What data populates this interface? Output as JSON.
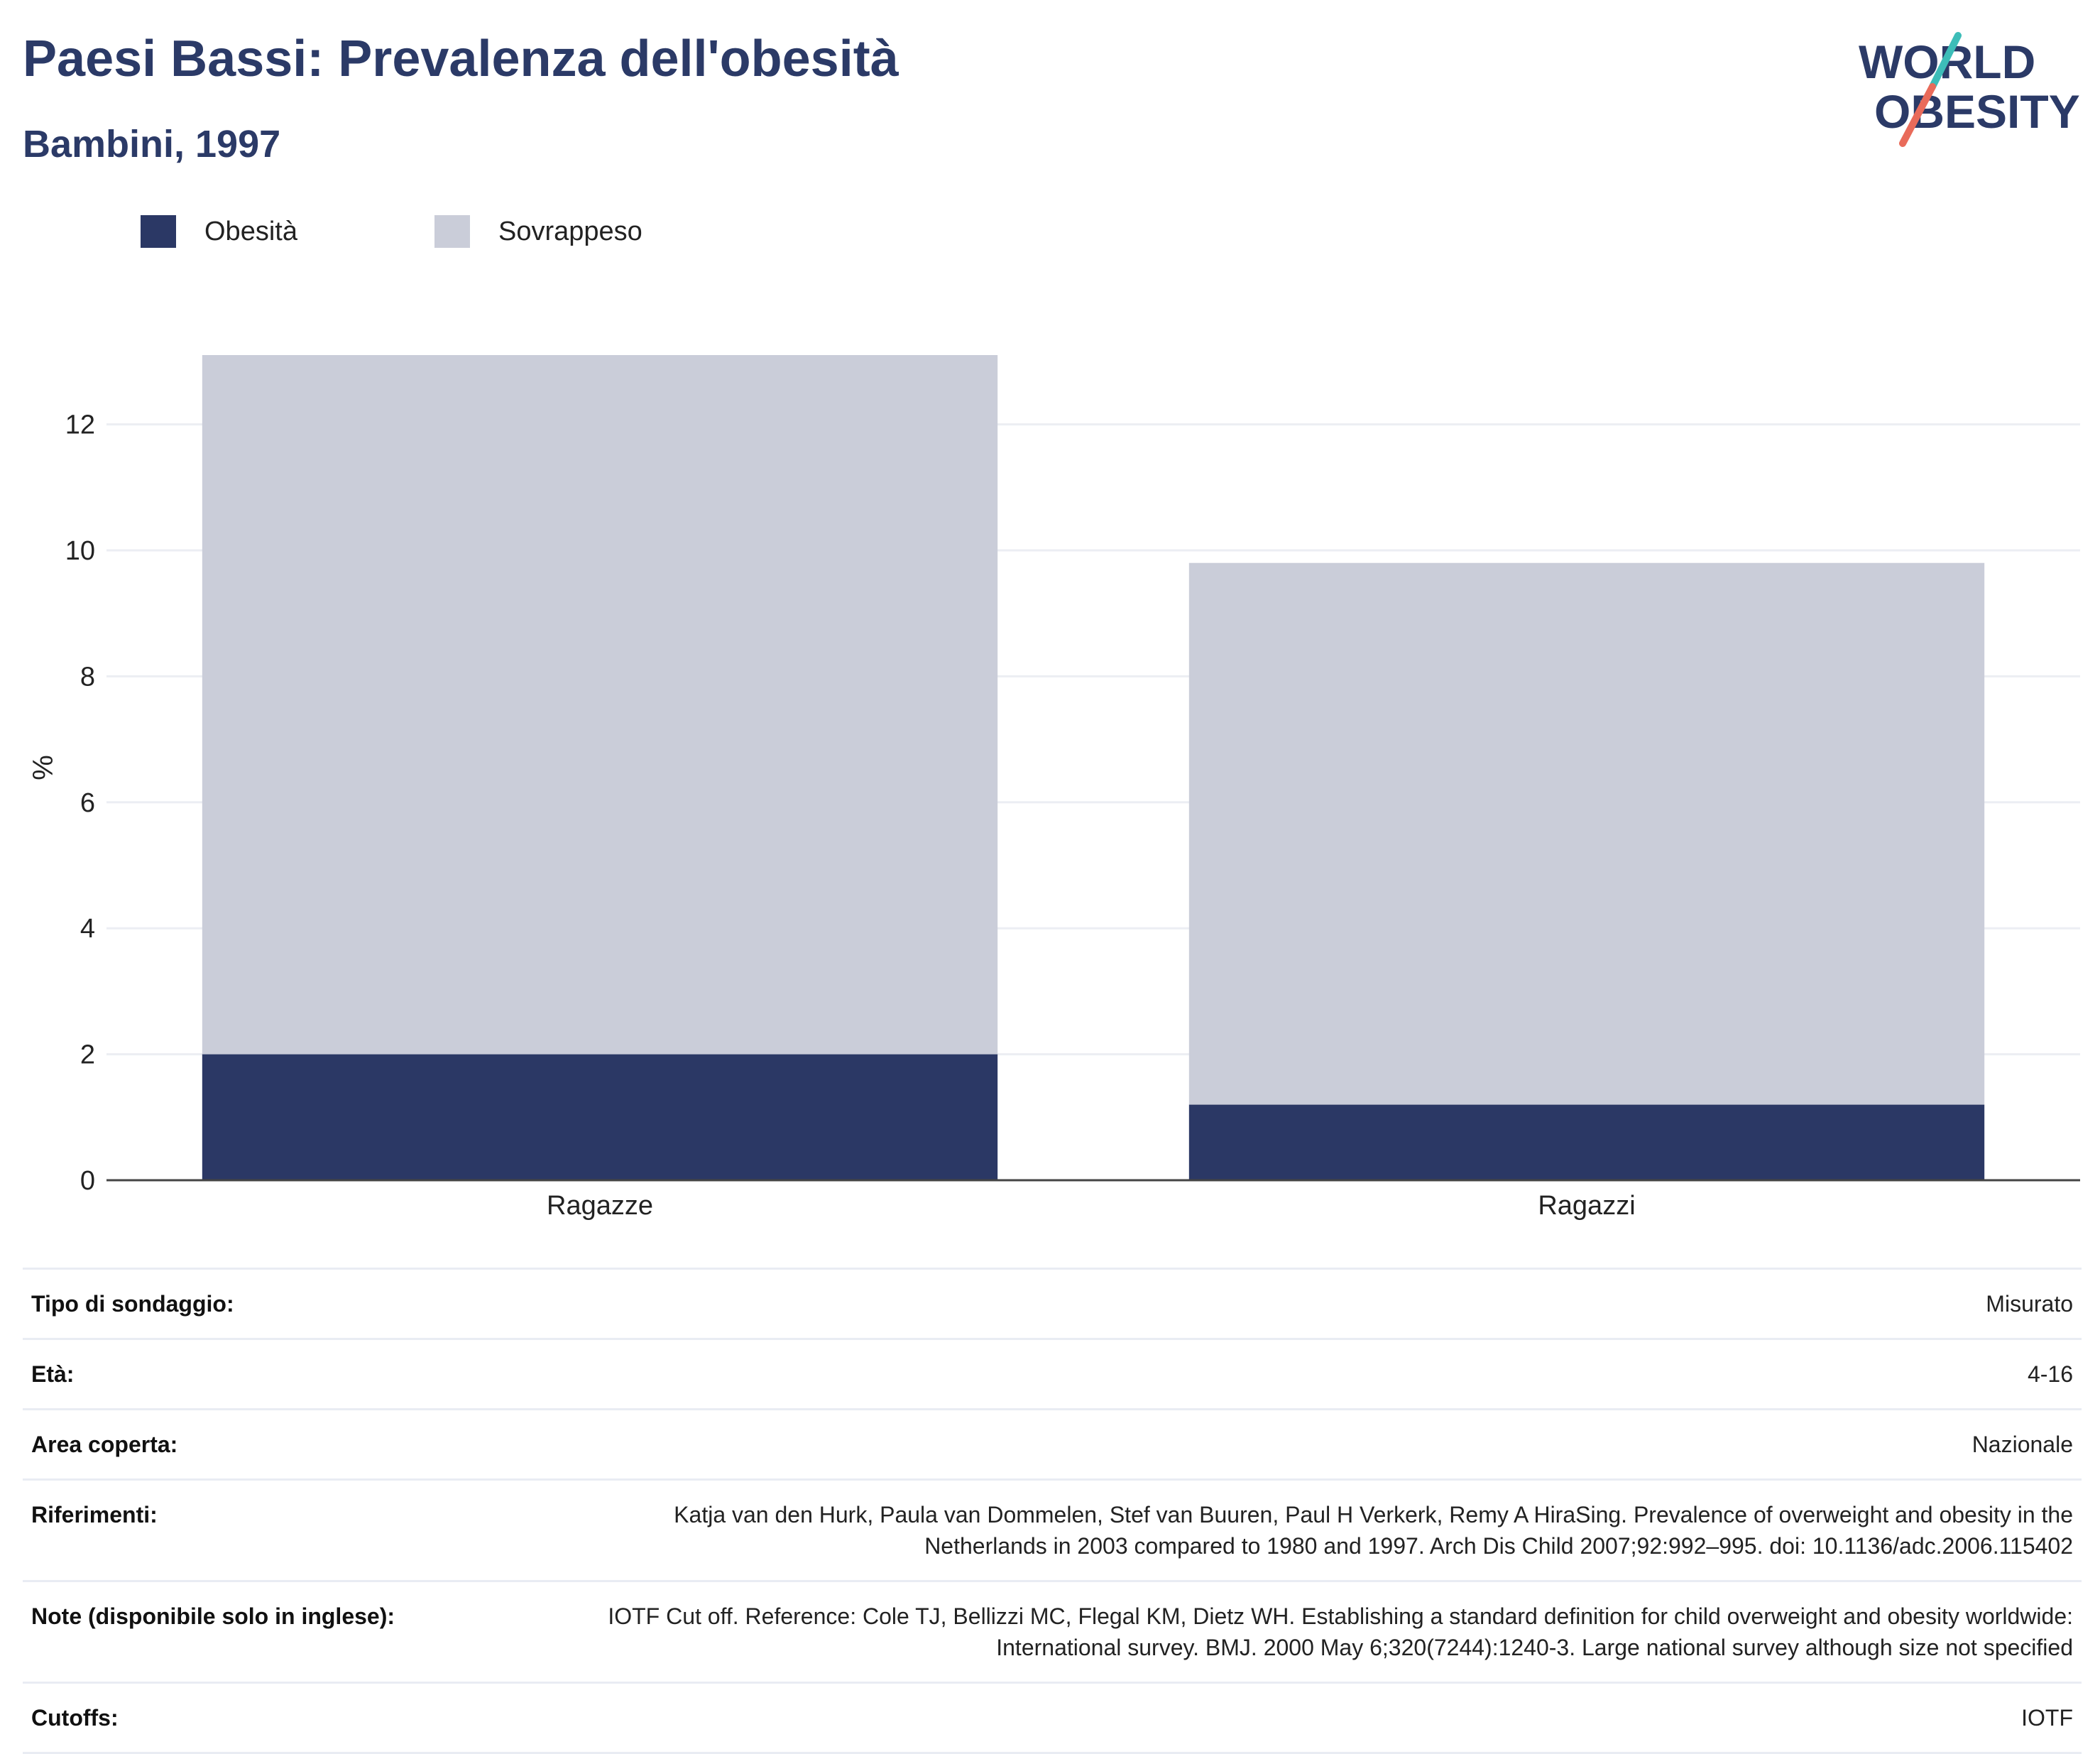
{
  "header": {
    "title": "Paesi Bassi: Prevalenza dell'obesità",
    "subtitle": "Bambini, 1997"
  },
  "logo": {
    "line1": "WORLD",
    "line2": "OBESITY",
    "brand_color": "#2b3a67",
    "accent_teal": "#3dbdb8",
    "accent_coral": "#e96b5a"
  },
  "colors": {
    "obesity": "#2b3865",
    "overweight": "#cacdd9",
    "title": "#2b3a67",
    "grid": "#eceef3",
    "axis": "#444444"
  },
  "chart_data": {
    "type": "bar",
    "stacked": true,
    "categories": [
      "Ragazze",
      "Ragazzi"
    ],
    "series": [
      {
        "name": "Obesità",
        "values": [
          2.0,
          1.2
        ]
      },
      {
        "name": "Sovrappeso",
        "values": [
          11.1,
          8.6
        ]
      }
    ],
    "xlabel": "",
    "ylabel": "%",
    "ylim": [
      0,
      13.1
    ],
    "yticks": [
      0,
      2,
      4,
      6,
      8,
      10,
      12
    ],
    "grid": true,
    "legend_position": "top-left"
  },
  "info": [
    {
      "label": "Tipo di sondaggio:",
      "value": "Misurato"
    },
    {
      "label": "Età:",
      "value": "4-16"
    },
    {
      "label": "Area coperta:",
      "value": "Nazionale"
    },
    {
      "label": "Riferimenti:",
      "value": "Katja van den Hurk, Paula van Dommelen, Stef van Buuren, Paul H Verkerk, Remy A HiraSing. Prevalence of overweight and obesity in the Netherlands in 2003 compared to 1980 and 1997. Arch Dis Child 2007;92:992–995. doi: 10.1136/adc.2006.115402"
    },
    {
      "label": "Note (disponibile solo in inglese):",
      "value": "IOTF Cut off. Reference: Cole TJ, Bellizzi MC, Flegal KM, Dietz WH. Establishing a standard definition for child overweight and obesity worldwide: International survey. BMJ. 2000 May 6;320(7244):1240-3. Large national survey although size not specified"
    },
    {
      "label": "Cutoffs:",
      "value": "IOTF"
    }
  ]
}
